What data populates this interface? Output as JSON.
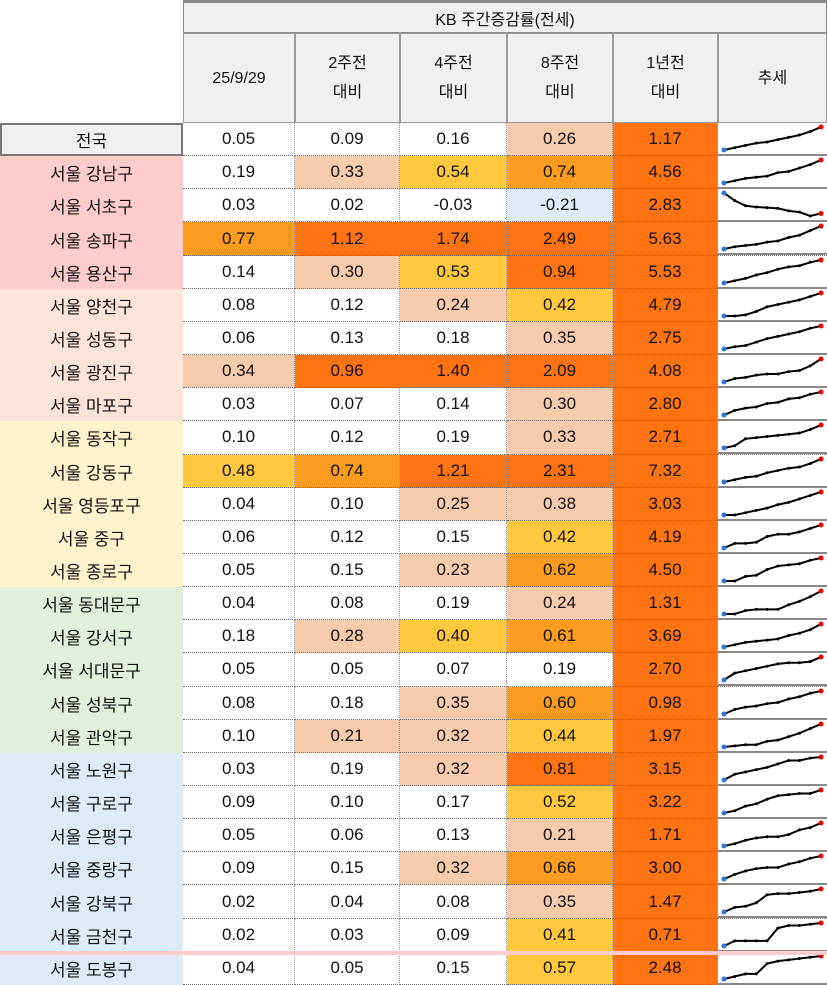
{
  "header": {
    "title": "KB 주간증감률(전세)",
    "columns": [
      {
        "l1": "25/9/29",
        "l2": ""
      },
      {
        "l1": "2주전",
        "l2": "대비"
      },
      {
        "l1": "4주전",
        "l2": "대비"
      },
      {
        "l1": "8주전",
        "l2": "대비"
      },
      {
        "l1": "1년전",
        "l2": "대비"
      },
      {
        "l1": "추세",
        "l2": ""
      }
    ]
  },
  "colors": {
    "pink": "#ffcccc",
    "peachBg": "#fde4d9",
    "yellowBg": "#fff2cc",
    "greenBg": "#e2efda",
    "blueBg": "#ddebf7",
    "white": "#ffffff",
    "peach": "#f8cbad",
    "yellow": "#ffc83d",
    "lightOrange": "#fb9c1e",
    "orange": "#ff7410",
    "neg": "#ddebf7"
  },
  "rows": [
    {
      "name": "전국",
      "group": "nat",
      "v": [
        "0.05",
        "0.09",
        "0.16",
        "0.26",
        "1.17"
      ],
      "trend": [
        0,
        1,
        2,
        3,
        3.5,
        4.5,
        5.5,
        6.5,
        8,
        10
      ]
    },
    {
      "name": "서울 강남구",
      "group": "pink",
      "v": [
        "0.19",
        "0.33",
        "0.54",
        "0.74",
        "4.56"
      ],
      "trend": [
        0,
        1,
        2,
        2.5,
        3,
        4.5,
        5,
        6.5,
        8,
        10
      ]
    },
    {
      "name": "서울 서초구",
      "group": "pink",
      "v": [
        "0.03",
        "0.02",
        "-0.03",
        "-0.21",
        "2.83"
      ],
      "trend": [
        10,
        7,
        5,
        4.5,
        4.3,
        4,
        3,
        2.5,
        1,
        2
      ]
    },
    {
      "name": "서울 송파구",
      "group": "pink",
      "v": [
        "0.77",
        "1.12",
        "1.74",
        "2.49",
        "5.63"
      ],
      "trend": [
        0,
        1,
        1.5,
        2,
        3,
        3.5,
        5,
        6,
        8,
        10
      ]
    },
    {
      "name": "서울 용산구",
      "group": "pink",
      "v": [
        "0.14",
        "0.30",
        "0.53",
        "0.94",
        "5.53"
      ],
      "trend": [
        0,
        1,
        2,
        3.5,
        4.5,
        6,
        7,
        7.5,
        9,
        10
      ]
    },
    {
      "name": "서울 양천구",
      "group": "peachBg",
      "v": [
        "0.08",
        "0.12",
        "0.24",
        "0.42",
        "4.79"
      ],
      "trend": [
        0,
        0,
        0.5,
        2,
        4,
        5,
        6,
        7,
        8.5,
        10
      ]
    },
    {
      "name": "서울 성동구",
      "group": "peachBg",
      "v": [
        "0.06",
        "0.13",
        "0.18",
        "0.35",
        "2.75"
      ],
      "trend": [
        0,
        1,
        1.5,
        3,
        4.5,
        5.5,
        6.5,
        7.5,
        9,
        10
      ]
    },
    {
      "name": "서울 광진구",
      "group": "peachBg",
      "v": [
        "0.34",
        "0.96",
        "1.40",
        "2.09",
        "4.08"
      ],
      "trend": [
        0,
        1.5,
        2,
        3,
        3.5,
        3.5,
        4.5,
        5,
        7,
        10
      ]
    },
    {
      "name": "서울 마포구",
      "group": "peachBg",
      "v": [
        "0.03",
        "0.07",
        "0.14",
        "0.30",
        "2.80"
      ],
      "trend": [
        0,
        2,
        3,
        3.5,
        5,
        5.5,
        7,
        7.5,
        9,
        10
      ]
    },
    {
      "name": "서울 동작구",
      "group": "yellowBg",
      "v": [
        "0.10",
        "0.12",
        "0.19",
        "0.33",
        "2.71"
      ],
      "trend": [
        0,
        1,
        4,
        4.5,
        5,
        5.5,
        6,
        6.5,
        8,
        10
      ]
    },
    {
      "name": "서울 강동구",
      "group": "yellowBg",
      "v": [
        "0.48",
        "0.74",
        "1.21",
        "2.31",
        "7.32"
      ],
      "trend": [
        0,
        1,
        2,
        2.5,
        4,
        5,
        6,
        6.5,
        8,
        10
      ]
    },
    {
      "name": "서울 영등포구",
      "group": "yellowBg",
      "v": [
        "0.04",
        "0.10",
        "0.25",
        "0.38",
        "3.03"
      ],
      "trend": [
        0,
        0,
        1,
        2,
        3,
        4.5,
        5.5,
        7,
        8.5,
        10
      ]
    },
    {
      "name": "서울 중구",
      "group": "yellowBg",
      "v": [
        "0.06",
        "0.12",
        "0.15",
        "0.42",
        "4.19"
      ],
      "trend": [
        0,
        2,
        2,
        2.5,
        5,
        6,
        6,
        7,
        8.5,
        10
      ]
    },
    {
      "name": "서울 종로구",
      "group": "yellowBg",
      "v": [
        "0.05",
        "0.15",
        "0.23",
        "0.62",
        "4.50"
      ],
      "trend": [
        0,
        0,
        2,
        2.5,
        5,
        6.5,
        7,
        7.5,
        9,
        10
      ]
    },
    {
      "name": "서울 동대문구",
      "group": "greenBg",
      "v": [
        "0.04",
        "0.08",
        "0.19",
        "0.24",
        "1.31"
      ],
      "trend": [
        0,
        0,
        1.5,
        2,
        2,
        2,
        4,
        5.5,
        7.5,
        10
      ]
    },
    {
      "name": "서울 강서구",
      "group": "greenBg",
      "v": [
        "0.18",
        "0.28",
        "0.40",
        "0.61",
        "3.69"
      ],
      "trend": [
        0,
        1,
        2,
        2.5,
        3,
        3.5,
        5,
        6,
        7.5,
        10
      ]
    },
    {
      "name": "서울 서대문구",
      "group": "greenBg",
      "v": [
        "0.05",
        "0.05",
        "0.07",
        "0.19",
        "2.70"
      ],
      "trend": [
        0,
        3,
        4,
        5,
        6,
        7,
        7.5,
        7.5,
        8,
        10
      ]
    },
    {
      "name": "서울 성북구",
      "group": "greenBg",
      "v": [
        "0.08",
        "0.18",
        "0.35",
        "0.60",
        "0.98"
      ],
      "trend": [
        0,
        2,
        3,
        3.5,
        4.5,
        5,
        6.5,
        7.5,
        9,
        10
      ]
    },
    {
      "name": "서울 관악구",
      "group": "greenBg",
      "v": [
        "0.10",
        "0.21",
        "0.32",
        "0.44",
        "1.97"
      ],
      "trend": [
        0,
        0.5,
        1,
        1,
        2.5,
        3,
        4.5,
        6,
        8,
        10
      ]
    },
    {
      "name": "서울 노원구",
      "group": "blueBg",
      "v": [
        "0.03",
        "0.19",
        "0.32",
        "0.81",
        "3.15"
      ],
      "trend": [
        0,
        2.5,
        3.5,
        4.5,
        5.5,
        7,
        8.5,
        8.5,
        9.5,
        10
      ]
    },
    {
      "name": "서울 구로구",
      "group": "blueBg",
      "v": [
        "0.09",
        "0.10",
        "0.17",
        "0.52",
        "3.22"
      ],
      "trend": [
        0,
        1,
        3,
        4,
        6,
        7.5,
        8,
        8.5,
        8.5,
        10
      ]
    },
    {
      "name": "서울 은평구",
      "group": "blueBg",
      "v": [
        "0.05",
        "0.06",
        "0.13",
        "0.21",
        "1.71"
      ],
      "trend": [
        0,
        1,
        2.5,
        3.5,
        4,
        4,
        5,
        7,
        8,
        10
      ]
    },
    {
      "name": "서울 중랑구",
      "group": "blueBg",
      "v": [
        "0.09",
        "0.15",
        "0.32",
        "0.66",
        "3.00"
      ],
      "trend": [
        0,
        2,
        3.5,
        4.5,
        5,
        5,
        6.5,
        7.5,
        9,
        10
      ]
    },
    {
      "name": "서울 강북구",
      "group": "blueBg",
      "v": [
        "0.02",
        "0.04",
        "0.08",
        "0.35",
        "1.47"
      ],
      "trend": [
        0,
        2,
        2.5,
        4,
        7.5,
        8,
        8,
        8.5,
        9,
        10
      ]
    },
    {
      "name": "서울 금천구",
      "group": "blueBg",
      "v": [
        "0.02",
        "0.03",
        "0.09",
        "0.41",
        "0.71"
      ],
      "trend": [
        0,
        2,
        2,
        2,
        2,
        7,
        8,
        8,
        8.5,
        9
      ]
    },
    {
      "name": "서울 도봉구",
      "group": "blueBg",
      "v": [
        "0.04",
        "0.05",
        "0.15",
        "0.57",
        "2.48"
      ],
      "trend": [
        0,
        1,
        2,
        2,
        6,
        7,
        7.5,
        8,
        8.5,
        9
      ]
    }
  ]
}
